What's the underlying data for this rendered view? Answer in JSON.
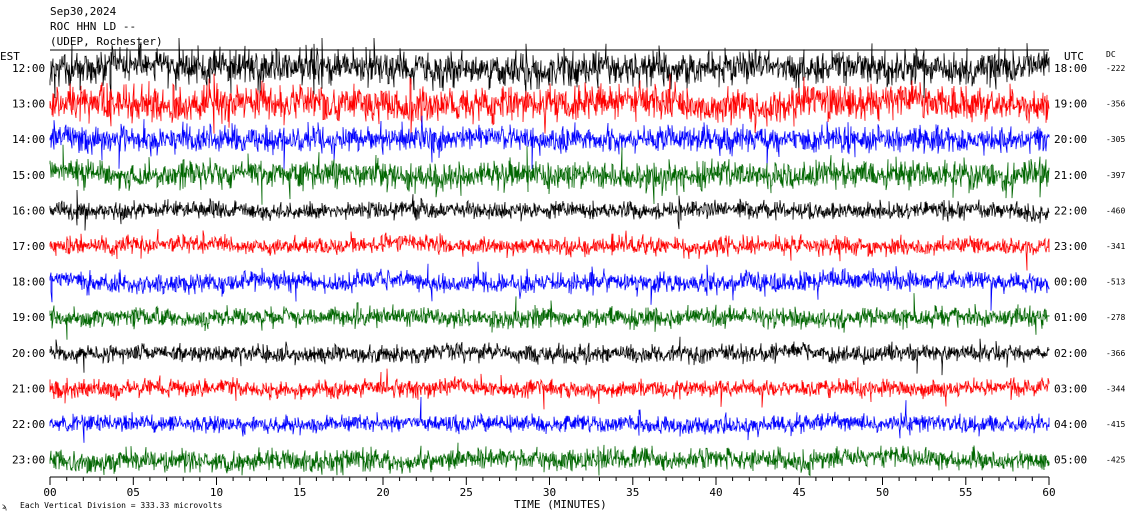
{
  "header": {
    "line1": "Sep30,2024",
    "line2": "ROC HHN LD --",
    "line3": "(UDEP, Rochester)"
  },
  "left_axis_title": "EST",
  "right_axis_title": "UTC",
  "dc_title": "DC",
  "x_axis_title": "TIME (MINUTES)",
  "scale_note": "Each Vertical Division =  333.33 microvolts",
  "chart_data": {
    "type": "line",
    "description_kind": "helicorder",
    "x_ticks": [
      "00",
      "05",
      "10",
      "15",
      "20",
      "25",
      "30",
      "35",
      "40",
      "45",
      "50",
      "55",
      "60"
    ],
    "xlim": [
      0,
      60
    ],
    "trace_colors": [
      "#000000",
      "#ff0000",
      "#0000ff",
      "#006600"
    ],
    "rows": [
      {
        "est": "12:00",
        "utc": "18:00",
        "dc": "-222",
        "color": "#000000",
        "amp": 1.6
      },
      {
        "est": "13:00",
        "utc": "19:00",
        "dc": "-356",
        "color": "#ff0000",
        "amp": 1.6
      },
      {
        "est": "14:00",
        "utc": "20:00",
        "dc": "-305",
        "color": "#0000ff",
        "amp": 1.2
      },
      {
        "est": "15:00",
        "utc": "21:00",
        "dc": "-397",
        "color": "#006600",
        "amp": 1.3
      },
      {
        "est": "16:00",
        "utc": "22:00",
        "dc": "-460",
        "color": "#000000",
        "amp": 0.8
      },
      {
        "est": "17:00",
        "utc": "23:00",
        "dc": "-341",
        "color": "#ff0000",
        "amp": 0.8
      },
      {
        "est": "18:00",
        "utc": "00:00",
        "dc": "-513",
        "color": "#0000ff",
        "amp": 0.9
      },
      {
        "est": "19:00",
        "utc": "01:00",
        "dc": "-278",
        "color": "#006600",
        "amp": 0.9
      },
      {
        "est": "20:00",
        "utc": "02:00",
        "dc": "-366",
        "color": "#000000",
        "amp": 0.8
      },
      {
        "est": "21:00",
        "utc": "03:00",
        "dc": "-344",
        "color": "#ff0000",
        "amp": 0.8
      },
      {
        "est": "22:00",
        "utc": "04:00",
        "dc": "-415",
        "color": "#0000ff",
        "amp": 0.8
      },
      {
        "est": "23:00",
        "utc": "05:00",
        "dc": "-425",
        "color": "#006600",
        "amp": 1.0
      }
    ]
  }
}
